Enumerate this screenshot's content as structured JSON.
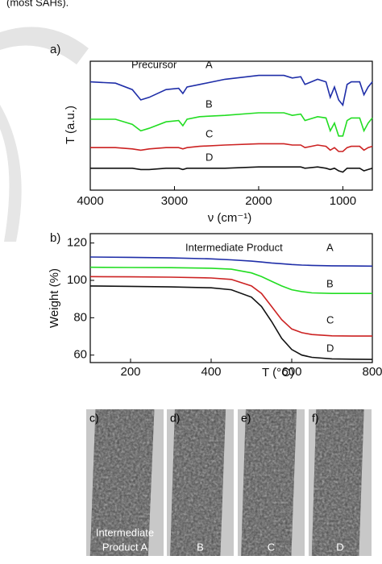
{
  "caption_fragment": "(most SAHs).",
  "chart_data": [
    {
      "type": "line",
      "panel_label": "a)",
      "annotation": "Precursor",
      "xlabel": "ν (cm⁻¹)",
      "ylabel": "T (a.u.)",
      "x": [
        4000,
        3700,
        3500,
        3400,
        3300,
        3100,
        2950,
        2900,
        2850,
        2700,
        2400,
        2000,
        1700,
        1600,
        1500,
        1450,
        1300,
        1200,
        1150,
        1100,
        1050,
        1000,
        950,
        900,
        800,
        750,
        700,
        650
      ],
      "xlim": [
        4000,
        650
      ],
      "xticks": [
        4000,
        3000,
        2000,
        1000
      ],
      "ylim": [
        0,
        100
      ],
      "series": [
        {
          "name": "A",
          "color": "#1f2ea8",
          "values": [
            84,
            83,
            78,
            70,
            72,
            78,
            79,
            75,
            80,
            82,
            86,
            89,
            89,
            87,
            88,
            82,
            86,
            84,
            72,
            80,
            70,
            66,
            82,
            84,
            84,
            74,
            80,
            84
          ]
        },
        {
          "name": "B",
          "color": "#22dd22",
          "values": [
            55,
            55,
            51,
            46,
            48,
            53,
            54,
            50,
            55,
            57,
            58,
            60,
            60,
            58,
            59,
            54,
            57,
            56,
            46,
            52,
            42,
            42,
            54,
            56,
            56,
            46,
            52,
            56
          ]
        },
        {
          "name": "C",
          "color": "#cc2222",
          "values": [
            33,
            33,
            32,
            31,
            32,
            33,
            33,
            32,
            33,
            34,
            35,
            36,
            36,
            35,
            35,
            33,
            35,
            34,
            31,
            33,
            30,
            30,
            33,
            34,
            34,
            31,
            33,
            34
          ]
        },
        {
          "name": "D",
          "color": "#111111",
          "values": [
            17,
            17,
            17,
            16,
            16,
            17,
            17,
            16,
            17,
            17,
            17,
            18,
            18,
            18,
            18,
            17,
            18,
            17,
            16,
            17,
            15,
            14,
            17,
            17,
            17,
            15,
            16,
            17
          ]
        }
      ]
    },
    {
      "type": "line",
      "panel_label": "b)",
      "annotation": "Intermediate Product",
      "xlabel": "T (°C)",
      "ylabel": "Weight (%)",
      "x": [
        100,
        200,
        300,
        400,
        450,
        500,
        525,
        550,
        575,
        600,
        625,
        650,
        700,
        750,
        800
      ],
      "xlim": [
        100,
        800
      ],
      "xticks": [
        200,
        400,
        600,
        800
      ],
      "ylim": [
        56,
        125
      ],
      "yticks": [
        60,
        80,
        100,
        120
      ],
      "series": [
        {
          "name": "A",
          "color": "#1f2ea8",
          "values": [
            112.5,
            112.3,
            112,
            111.5,
            111,
            110.3,
            109.8,
            109.3,
            108.9,
            108.5,
            108.2,
            108,
            107.8,
            107.7,
            107.6
          ]
        },
        {
          "name": "B",
          "color": "#22dd22",
          "values": [
            107,
            106.9,
            106.8,
            106.5,
            106,
            104,
            102,
            99.5,
            97,
            95,
            94,
            93.3,
            93,
            93,
            93
          ]
        },
        {
          "name": "C",
          "color": "#cc2222",
          "values": [
            102,
            101.9,
            101.7,
            101.3,
            100.5,
            97,
            93,
            86,
            79,
            74,
            72,
            71,
            70.3,
            70.2,
            70.2
          ]
        },
        {
          "name": "D",
          "color": "#111111",
          "values": [
            97,
            96.8,
            96.5,
            96,
            95,
            91,
            86,
            78,
            69,
            63,
            60,
            58.8,
            58,
            57.8,
            57.7
          ]
        }
      ]
    }
  ],
  "images": [
    {
      "label": "c)",
      "caption": [
        "Intermediate",
        "Product A"
      ]
    },
    {
      "label": "d)",
      "caption": [
        "B"
      ]
    },
    {
      "label": "e)",
      "caption": [
        "C"
      ]
    },
    {
      "label": "f)",
      "caption": [
        "D"
      ]
    }
  ]
}
